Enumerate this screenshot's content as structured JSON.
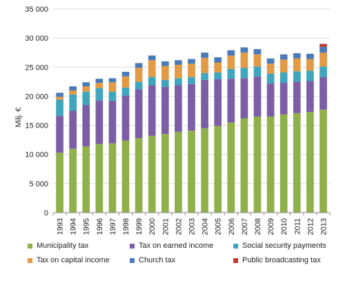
{
  "chart_data": {
    "type": "bar",
    "stacked": true,
    "ylabel": "Milj. €",
    "ylim": [
      0,
      35000
    ],
    "yticks": [
      0,
      5000,
      10000,
      15000,
      20000,
      25000,
      30000,
      35000
    ],
    "ytick_labels": [
      "0",
      "5 000",
      "10 000",
      "15 000",
      "20 000",
      "25 000",
      "30 000",
      "35 000"
    ],
    "grid": true,
    "legend_position": "bottom",
    "categories": [
      "1993",
      "1994",
      "1995",
      "1996",
      "1997",
      "1998",
      "1999",
      "2000",
      "2001",
      "2002",
      "2003",
      "2004",
      "2005",
      "2006",
      "2007",
      "2008",
      "2009",
      "2010",
      "2011",
      "2012",
      "2013"
    ],
    "series": [
      {
        "name": "Municipality tax",
        "color": "#8fb04a",
        "values": [
          10300,
          11000,
          11400,
          11800,
          11900,
          12400,
          12800,
          13200,
          13500,
          13900,
          14100,
          14500,
          14900,
          15500,
          16200,
          16500,
          16500,
          16900,
          17100,
          17300,
          17700
        ]
      },
      {
        "name": "Tax on earned income",
        "color": "#7b5ea6",
        "values": [
          6300,
          6500,
          7100,
          7500,
          7300,
          7700,
          8400,
          8700,
          8100,
          8000,
          8000,
          8300,
          8000,
          7500,
          6900,
          6900,
          5700,
          5400,
          5400,
          5300,
          5600
        ]
      },
      {
        "name": "Social security payments",
        "color": "#3fa6bd",
        "values": [
          2800,
          2800,
          2300,
          2100,
          1600,
          1400,
          1300,
          1400,
          1200,
          1200,
          1200,
          1200,
          1200,
          1700,
          1800,
          1700,
          1700,
          1800,
          1800,
          1800,
          1800
        ]
      },
      {
        "name": "Tax on capital income",
        "color": "#e39a45",
        "values": [
          500,
          700,
          900,
          900,
          1600,
          1900,
          2400,
          2900,
          2400,
          2300,
          2300,
          2600,
          1700,
          2300,
          2600,
          2100,
          1700,
          2200,
          2200,
          2000,
          2400
        ]
      },
      {
        "name": "Church tax",
        "color": "#4a7ab8",
        "values": [
          700,
          700,
          700,
          700,
          700,
          800,
          800,
          800,
          800,
          800,
          800,
          900,
          900,
          900,
          900,
          900,
          900,
          900,
          900,
          900,
          1000
        ]
      },
      {
        "name": "Public broadcasting tax",
        "color": "#c0392b",
        "values": [
          0,
          0,
          0,
          0,
          0,
          0,
          0,
          0,
          0,
          0,
          0,
          0,
          0,
          0,
          0,
          0,
          0,
          0,
          0,
          0,
          500
        ]
      }
    ]
  }
}
